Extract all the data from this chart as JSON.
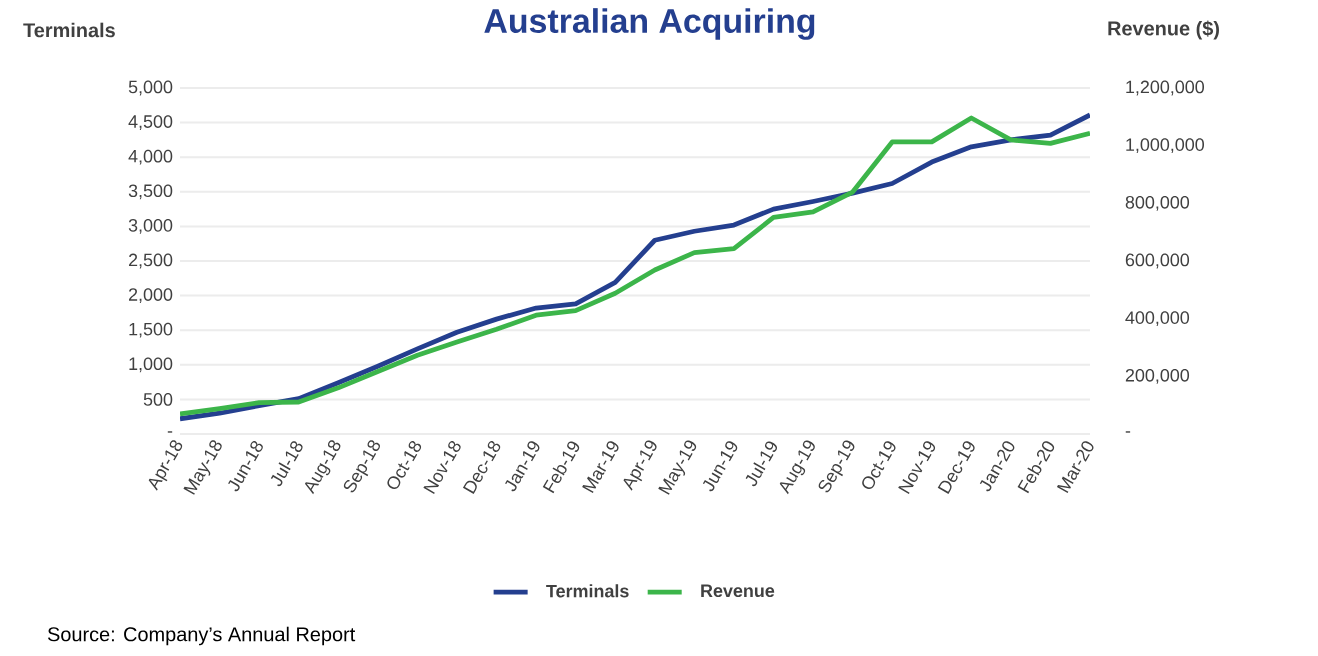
{
  "chart_data": {
    "type": "line",
    "title": "Australian Acquiring",
    "ylabel": "Terminals",
    "y2label": "Revenue ($)",
    "categories": [
      "Apr-18",
      "May-18",
      "Jun-18",
      "Jul-18",
      "Aug-18",
      "Sep-18",
      "Oct-18",
      "Nov-18",
      "Dec-18",
      "Jan-19",
      "Feb-19",
      "Mar-19",
      "Apr-19",
      "May-19",
      "Jun-19",
      "Jul-19",
      "Aug-19",
      "Sep-19",
      "Oct-19",
      "Nov-19",
      "Dec-19",
      "Jan-20",
      "Feb-20",
      "Mar-20"
    ],
    "series": [
      {
        "name": "Terminals",
        "color": "#243f8f",
        "values": [
          220,
          300,
          410,
          510,
          740,
          980,
          1230,
          1470,
          1660,
          1820,
          1880,
          2190,
          2800,
          2930,
          3020,
          3250,
          3360,
          3480,
          3620,
          3930,
          4150,
          4250,
          4320,
          4610
        ]
      },
      {
        "name": "Revenue",
        "color": "#3cb54a",
        "axis": "y2",
        "values": [
          70000,
          88000,
          109000,
          111000,
          160000,
          217000,
          273000,
          319000,
          363000,
          412000,
          428000,
          488000,
          569000,
          629000,
          643000,
          751000,
          770000,
          839000,
          1013000,
          1013000,
          1096000,
          1020000,
          1008000,
          1043000
        ]
      }
    ],
    "ylim": [
      0,
      5000
    ],
    "yticks": [
      {
        "value": 0,
        "label": "-"
      },
      500,
      {
        "value": 1000,
        "label": "1,000"
      },
      {
        "value": 1500,
        "label": "1,500"
      },
      {
        "value": 2000,
        "label": "2,000"
      },
      {
        "value": 2500,
        "label": "2,500"
      },
      {
        "value": 3000,
        "label": "3,000"
      },
      {
        "value": 3500,
        "label": "3,500"
      },
      {
        "value": 4000,
        "label": "4,000"
      },
      {
        "value": 4500,
        "label": "4,500"
      },
      {
        "value": 5000,
        "label": "5,000"
      }
    ],
    "y2lim": [
      0,
      1200000
    ],
    "y2ticks": [
      {
        "value": 0,
        "label": "-"
      },
      {
        "value": 200000,
        "label": "200,000"
      },
      {
        "value": 400000,
        "label": "400,000"
      },
      {
        "value": 600000,
        "label": "600,000"
      },
      {
        "value": 800000,
        "label": "800,000"
      },
      {
        "value": 1000000,
        "label": "1,000,000"
      },
      {
        "value": 1200000,
        "label": "1,200,000"
      }
    ],
    "grid": "y",
    "legend": "bottom",
    "marker": "none",
    "line_style": "solid",
    "annotations": [
      "Source: Company’s Annual Report"
    ]
  }
}
